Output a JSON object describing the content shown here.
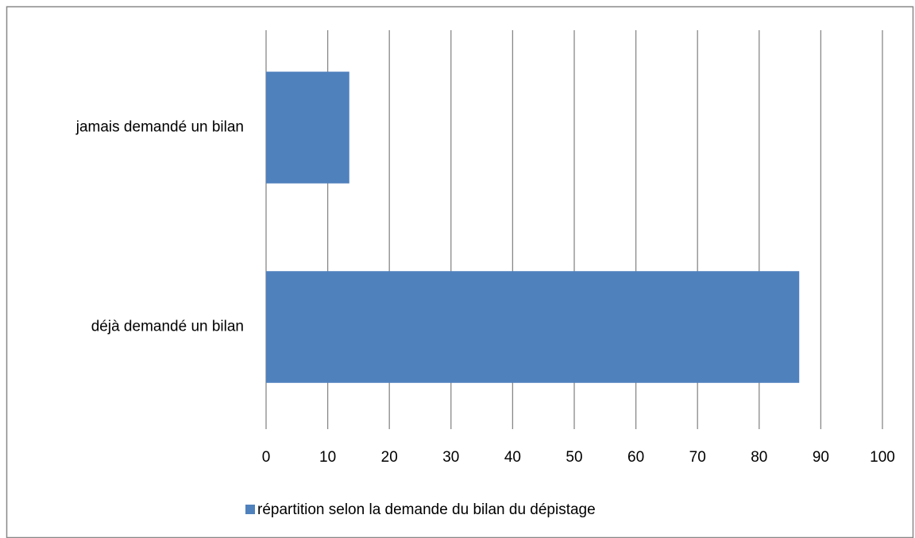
{
  "chart_data": {
    "type": "bar",
    "orientation": "horizontal",
    "categories": [
      "jamais demandé un bilan",
      "déjà demandé un bilan"
    ],
    "series": [
      {
        "name": "répartition selon la demande du bilan du dépistage",
        "color": "#4f81bd",
        "values": [
          13.5,
          86.5
        ]
      }
    ],
    "xlim": [
      0,
      100
    ],
    "xticks": [
      0,
      10,
      20,
      30,
      40,
      50,
      60,
      70,
      80,
      90,
      100
    ],
    "grid": true,
    "legend": "bottom"
  }
}
